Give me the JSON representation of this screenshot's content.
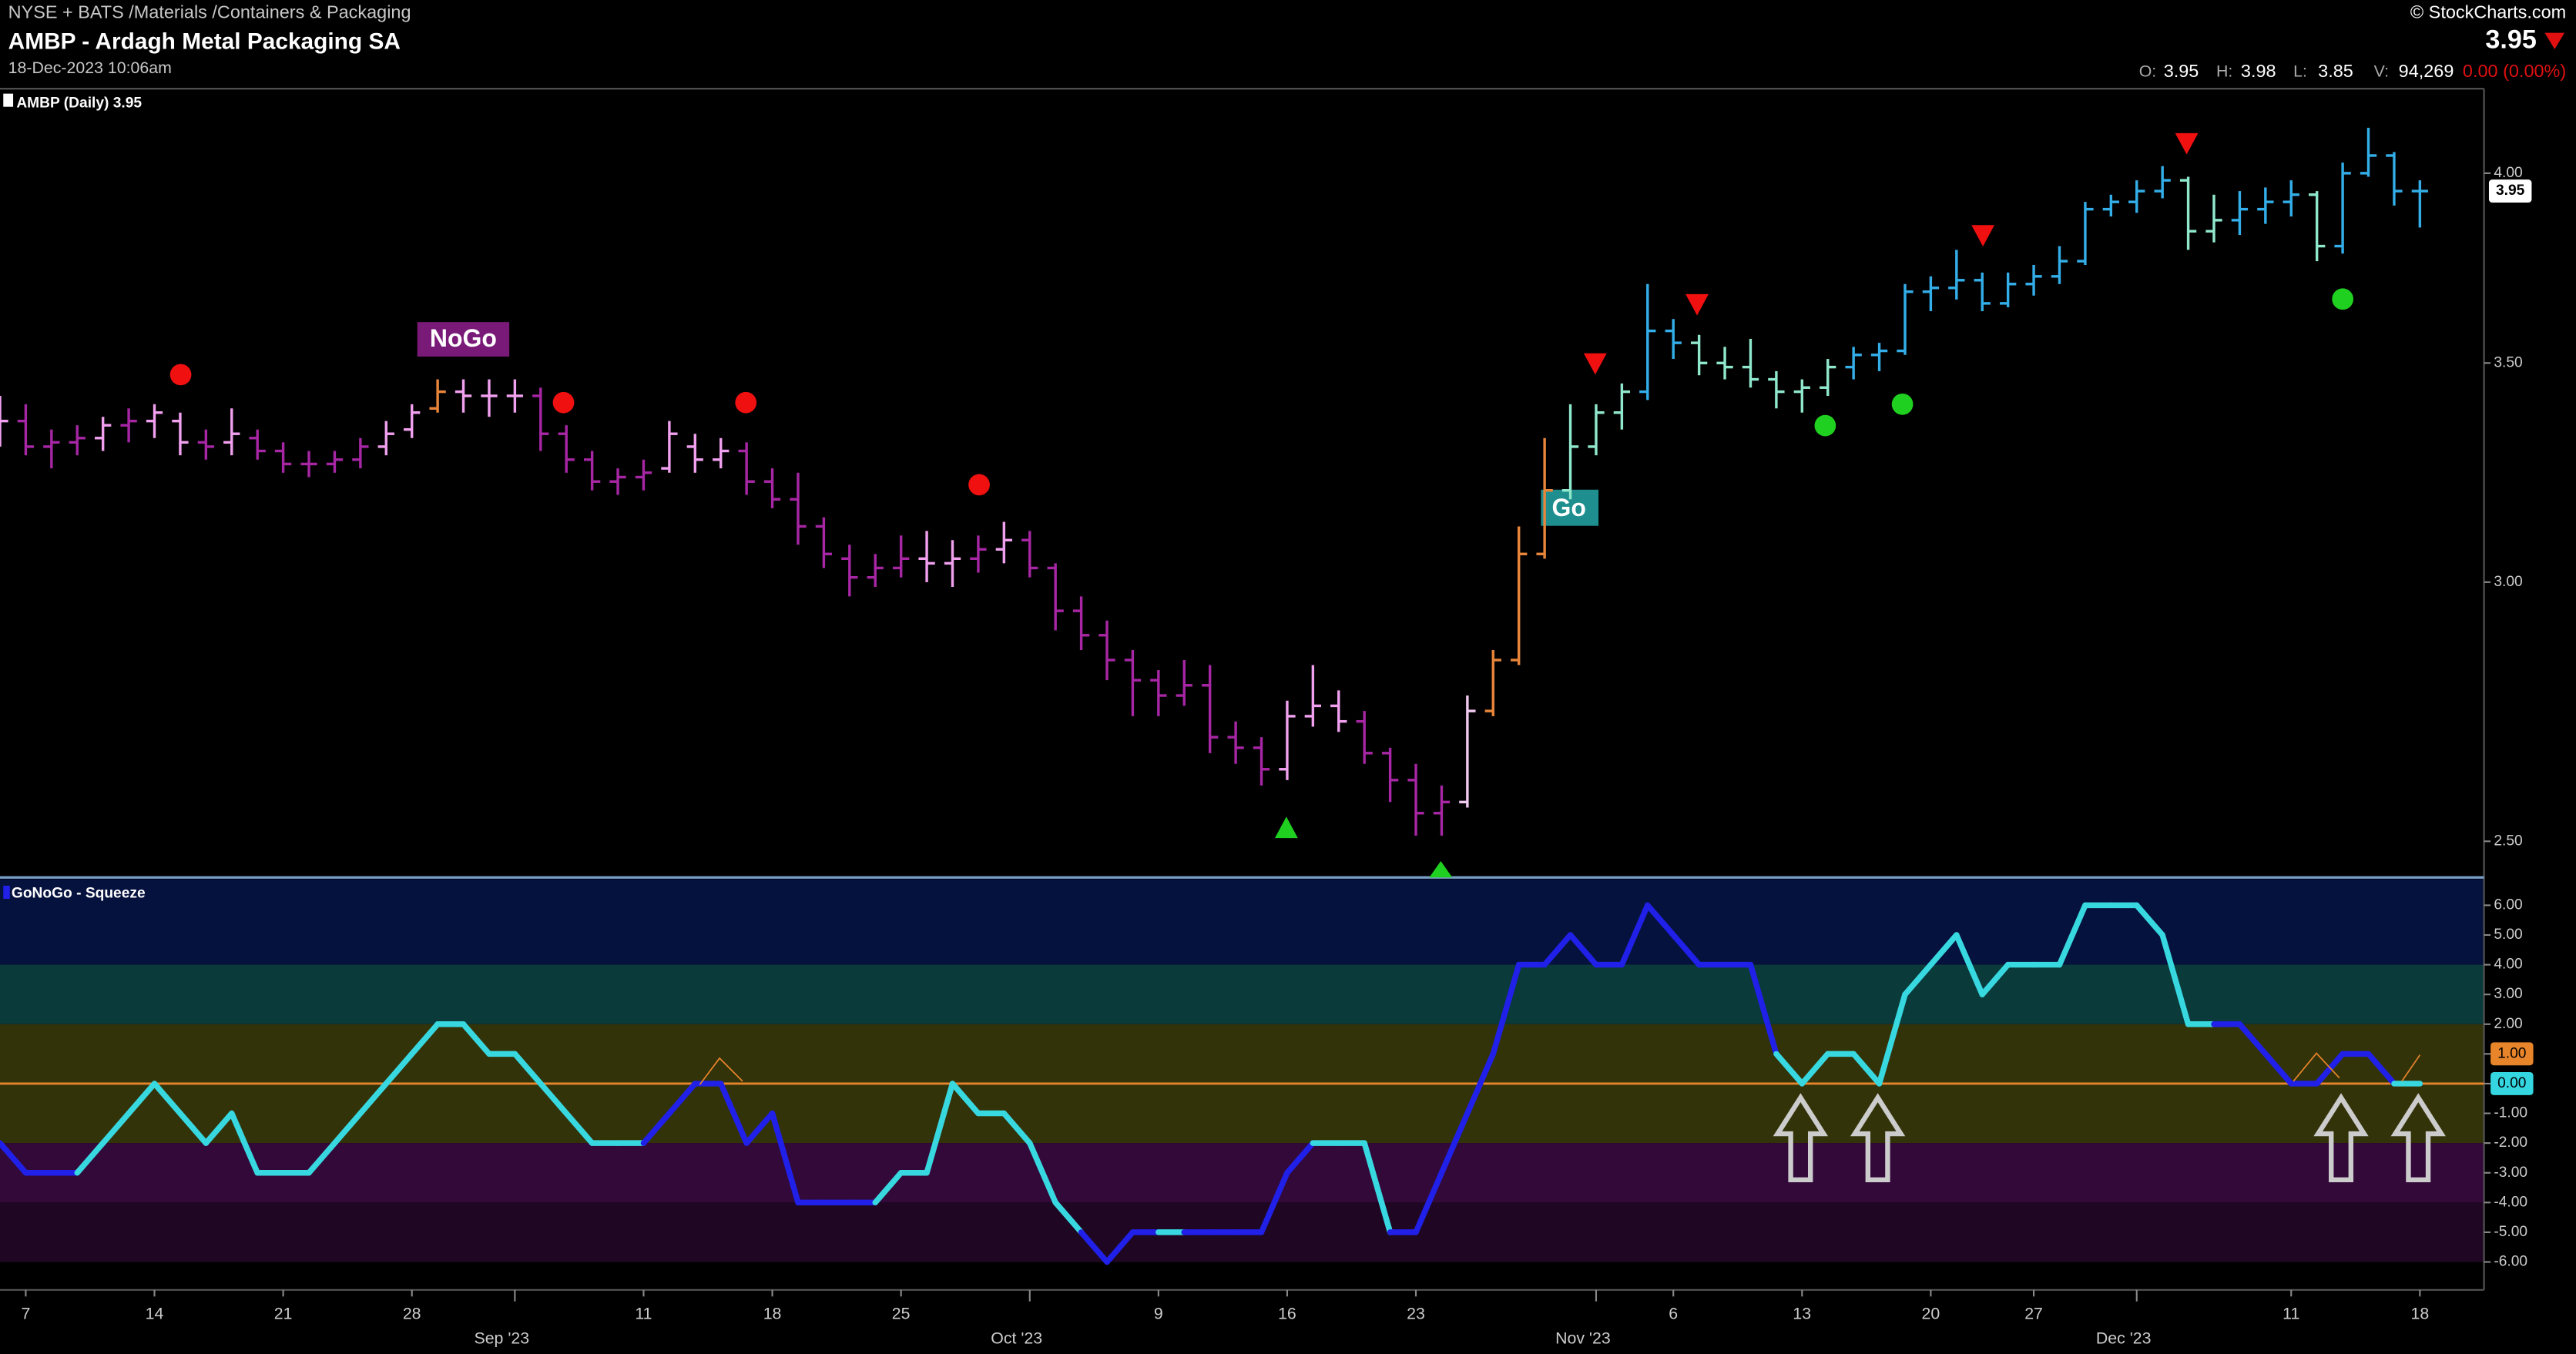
{
  "header": {
    "exchange": "NYSE + BATS /Materials /Containers & Packaging",
    "name": "AMBP - Ardagh Metal Packaging SA",
    "date": "18-Dec-2023 10:06am",
    "brand": "© StockCharts.com",
    "last": "3.95",
    "quote": [
      {
        "label": "O:",
        "value": "3.95"
      },
      {
        "label": "H:",
        "value": "3.98"
      },
      {
        "label": "L:",
        "value": "3.85"
      },
      {
        "label": "V:",
        "value": "94,269"
      }
    ],
    "change": "0.00 (0.00%)"
  },
  "chart_data": [
    {
      "type": "ohlc",
      "title": "AMBP (Daily) 3.95",
      "log": true,
      "ylim": [
        2.44,
        4.24
      ],
      "yticks": [
        {
          "value": 2.5,
          "label": "2.50"
        },
        {
          "value": 3,
          "label": "3.00"
        },
        {
          "value": 3.5,
          "label": "3.50"
        },
        {
          "value": 4,
          "label": "4.00"
        }
      ],
      "last_label": "3.95",
      "last_color": "#ffffff",
      "signal_labels": [
        {
          "text": "NoGo",
          "color": "#7a1a78"
        },
        {
          "text": "Go",
          "color": "#1f8e8e"
        }
      ],
      "categories": [
        "2023-08-04",
        "2023-08-07",
        "2023-08-08",
        "2023-08-09",
        "2023-08-10",
        "2023-08-11",
        "2023-08-14",
        "2023-08-15",
        "2023-08-16",
        "2023-08-17",
        "2023-08-18",
        "2023-08-21",
        "2023-08-22",
        "2023-08-23",
        "2023-08-24",
        "2023-08-25",
        "2023-08-28",
        "2023-08-29",
        "2023-08-30",
        "2023-08-31",
        "2023-09-01",
        "2023-09-05",
        "2023-09-06",
        "2023-09-07",
        "2023-09-08",
        "2023-09-11",
        "2023-09-12",
        "2023-09-13",
        "2023-09-14",
        "2023-09-15",
        "2023-09-18",
        "2023-09-19",
        "2023-09-20",
        "2023-09-21",
        "2023-09-22",
        "2023-09-25",
        "2023-09-26",
        "2023-09-27",
        "2023-09-28",
        "2023-09-29",
        "2023-10-02",
        "2023-10-03",
        "2023-10-04",
        "2023-10-05",
        "2023-10-06",
        "2023-10-09",
        "2023-10-10",
        "2023-10-11",
        "2023-10-12",
        "2023-10-13",
        "2023-10-16",
        "2023-10-17",
        "2023-10-18",
        "2023-10-19",
        "2023-10-20",
        "2023-10-23",
        "2023-10-24",
        "2023-10-25",
        "2023-10-26",
        "2023-10-27",
        "2023-10-30",
        "2023-10-31",
        "2023-11-01",
        "2023-11-02",
        "2023-11-03",
        "2023-11-06",
        "2023-11-07",
        "2023-11-08",
        "2023-11-09",
        "2023-11-10",
        "2023-11-13",
        "2023-11-14",
        "2023-11-15",
        "2023-11-16",
        "2023-11-17",
        "2023-11-20",
        "2023-11-21",
        "2023-11-22",
        "2023-11-24",
        "2023-11-27",
        "2023-11-28",
        "2023-11-29",
        "2023-11-30",
        "2023-12-01",
        "2023-12-04",
        "2023-12-05",
        "2023-12-06",
        "2023-12-07",
        "2023-12-08",
        "2023-12-11",
        "2023-12-12",
        "2023-12-13",
        "2023-12-14",
        "2023-12-15",
        "2023-12-18"
      ],
      "open": [
        3.37,
        3.36,
        3.3,
        3.31,
        3.32,
        3.35,
        3.36,
        3.36,
        3.31,
        3.31,
        3.32,
        3.29,
        3.26,
        3.26,
        3.27,
        3.3,
        3.34,
        3.39,
        3.43,
        3.42,
        3.42,
        3.42,
        3.33,
        3.27,
        3.22,
        3.23,
        3.25,
        3.3,
        3.27,
        3.29,
        3.22,
        3.18,
        3.12,
        3.05,
        3.01,
        3.03,
        3.05,
        3.04,
        3.05,
        3.07,
        3.09,
        3.03,
        2.94,
        2.89,
        2.84,
        2.8,
        2.77,
        2.79,
        2.69,
        2.67,
        2.63,
        2.73,
        2.75,
        2.72,
        2.66,
        2.61,
        2.55,
        2.57,
        2.74,
        2.84,
        3.06,
        3.2,
        3.3,
        3.38,
        3.43,
        3.58,
        3.55,
        3.5,
        3.49,
        3.46,
        3.43,
        3.44,
        3.49,
        3.52,
        3.53,
        3.68,
        3.69,
        3.71,
        3.65,
        3.7,
        3.72,
        3.76,
        3.9,
        3.92,
        3.95,
        3.98,
        3.84,
        3.87,
        3.9,
        3.92,
        3.94,
        3.8,
        4.0,
        4.05,
        3.95
      ],
      "high": [
        3.42,
        3.4,
        3.34,
        3.35,
        3.37,
        3.39,
        3.4,
        3.38,
        3.34,
        3.39,
        3.34,
        3.31,
        3.29,
        3.29,
        3.32,
        3.36,
        3.4,
        3.46,
        3.46,
        3.46,
        3.46,
        3.44,
        3.35,
        3.29,
        3.25,
        3.27,
        3.36,
        3.33,
        3.32,
        3.31,
        3.25,
        3.24,
        3.14,
        3.08,
        3.06,
        3.1,
        3.11,
        3.09,
        3.1,
        3.13,
        3.11,
        3.04,
        2.97,
        2.92,
        2.86,
        2.82,
        2.84,
        2.83,
        2.72,
        2.69,
        2.76,
        2.83,
        2.78,
        2.74,
        2.67,
        2.64,
        2.6,
        2.77,
        2.86,
        3.12,
        3.32,
        3.4,
        3.4,
        3.45,
        3.7,
        3.61,
        3.57,
        3.54,
        3.56,
        3.48,
        3.46,
        3.51,
        3.54,
        3.55,
        3.7,
        3.72,
        3.79,
        3.73,
        3.73,
        3.75,
        3.8,
        3.92,
        3.94,
        3.98,
        4.02,
        3.99,
        3.94,
        3.95,
        3.96,
        3.98,
        3.95,
        4.03,
        4.13,
        4.06,
        3.98
      ],
      "low": [
        3.3,
        3.28,
        3.25,
        3.28,
        3.29,
        3.31,
        3.32,
        3.28,
        3.27,
        3.28,
        3.27,
        3.24,
        3.23,
        3.24,
        3.25,
        3.28,
        3.32,
        3.38,
        3.38,
        3.37,
        3.38,
        3.29,
        3.24,
        3.2,
        3.19,
        3.2,
        3.24,
        3.24,
        3.25,
        3.19,
        3.16,
        3.08,
        3.03,
        2.97,
        2.99,
        3.01,
        3.0,
        2.99,
        3.02,
        3.04,
        3.01,
        2.9,
        2.86,
        2.8,
        2.73,
        2.73,
        2.75,
        2.66,
        2.64,
        2.6,
        2.61,
        2.71,
        2.7,
        2.64,
        2.57,
        2.51,
        2.51,
        2.56,
        2.73,
        2.83,
        3.05,
        3.18,
        3.28,
        3.34,
        3.41,
        3.51,
        3.47,
        3.46,
        3.44,
        3.39,
        3.38,
        3.42,
        3.46,
        3.48,
        3.52,
        3.63,
        3.66,
        3.63,
        3.64,
        3.67,
        3.7,
        3.75,
        3.88,
        3.89,
        3.93,
        3.79,
        3.81,
        3.83,
        3.86,
        3.88,
        3.76,
        3.78,
        3.99,
        3.91,
        3.85
      ],
      "close": [
        3.36,
        3.3,
        3.31,
        3.32,
        3.35,
        3.36,
        3.38,
        3.31,
        3.3,
        3.33,
        3.29,
        3.26,
        3.26,
        3.27,
        3.3,
        3.33,
        3.38,
        3.43,
        3.42,
        3.42,
        3.42,
        3.33,
        3.27,
        3.22,
        3.23,
        3.24,
        3.33,
        3.27,
        3.29,
        3.22,
        3.18,
        3.12,
        3.06,
        3.01,
        3.03,
        3.05,
        3.04,
        3.05,
        3.07,
        3.09,
        3.03,
        2.94,
        2.89,
        2.84,
        2.8,
        2.77,
        2.79,
        2.69,
        2.67,
        2.63,
        2.73,
        2.75,
        2.72,
        2.66,
        2.61,
        2.55,
        2.57,
        2.74,
        2.84,
        3.06,
        3.2,
        3.3,
        3.38,
        3.43,
        3.58,
        3.55,
        3.5,
        3.49,
        3.46,
        3.43,
        3.44,
        3.49,
        3.52,
        3.53,
        3.68,
        3.69,
        3.71,
        3.65,
        3.7,
        3.72,
        3.76,
        3.9,
        3.92,
        3.95,
        3.98,
        3.84,
        3.87,
        3.9,
        3.92,
        3.94,
        3.8,
        4.0,
        4.05,
        3.95,
        3.95
      ],
      "colors": [
        "#f0a0ee",
        "#a626a4",
        "#a626a4",
        "#a626a4",
        "#f0a0ee",
        "#a626a4",
        "#f0a0ee",
        "#f0a0ee",
        "#a626a4",
        "#f0a0ee",
        "#a626a4",
        "#a626a4",
        "#a626a4",
        "#a626a4",
        "#a626a4",
        "#f0a0ee",
        "#f0a0ee",
        "#e8853a",
        "#f0a0ee",
        "#f0a0ee",
        "#f0a0ee",
        "#a626a4",
        "#a626a4",
        "#a626a4",
        "#a626a4",
        "#a626a4",
        "#f0a0ee",
        "#f0a0ee",
        "#f0a0ee",
        "#a626a4",
        "#a626a4",
        "#a626a4",
        "#a626a4",
        "#a626a4",
        "#a626a4",
        "#a626a4",
        "#f0a0ee",
        "#f0a0ee",
        "#a626a4",
        "#f0a0ee",
        "#a626a4",
        "#a626a4",
        "#a626a4",
        "#a626a4",
        "#a626a4",
        "#a626a4",
        "#a626a4",
        "#a626a4",
        "#a626a4",
        "#a626a4",
        "#f0a0ee",
        "#f0a0ee",
        "#f0a0ee",
        "#a626a4",
        "#a626a4",
        "#a626a4",
        "#a626a4",
        "#f0c8f0",
        "#e8853a",
        "#e8853a",
        "#e8853a",
        "#8fe8cc",
        "#8fe8cc",
        "#8fe8cc",
        "#33aee8",
        "#33aee8",
        "#8fe8cc",
        "#8fe8cc",
        "#8fe8cc",
        "#8fe8cc",
        "#8fe8cc",
        "#8fe8cc",
        "#33aee8",
        "#33aee8",
        "#33aee8",
        "#33aee8",
        "#33aee8",
        "#33aee8",
        "#33aee8",
        "#33aee8",
        "#33aee8",
        "#33aee8",
        "#33aee8",
        "#33aee8",
        "#33aee8",
        "#8fe8cc",
        "#8fe8cc",
        "#33aee8",
        "#33aee8",
        "#33aee8",
        "#8fe8cc",
        "#33aee8",
        "#33aee8",
        "#33aee8",
        "#33aee8"
      ],
      "xticks": [
        {
          "value": "2023-08-07",
          "label": "7"
        },
        {
          "value": "2023-08-14",
          "label": "14"
        },
        {
          "value": "2023-08-21",
          "label": "21"
        },
        {
          "value": "2023-08-28",
          "label": "28"
        },
        {
          "value": "2023-09-11",
          "label": "11"
        },
        {
          "value": "2023-09-18",
          "label": "18"
        },
        {
          "value": "2023-09-25",
          "label": "25"
        },
        {
          "value": "2023-10-09",
          "label": "9"
        },
        {
          "value": "2023-10-16",
          "label": "16"
        },
        {
          "value": "2023-10-23",
          "label": "23"
        },
        {
          "value": "2023-11-06",
          "label": "6"
        },
        {
          "value": "2023-11-13",
          "label": "13"
        },
        {
          "value": "2023-11-20",
          "label": "20"
        },
        {
          "value": "2023-11-27",
          "label": "27"
        },
        {
          "value": "2023-12-11",
          "label": "11"
        },
        {
          "value": "2023-12-18",
          "label": "18"
        }
      ],
      "xmonths": [
        {
          "value": "2023-09-01",
          "label": "Sep '23"
        },
        {
          "value": "2023-10-02",
          "label": "Oct '23"
        },
        {
          "value": "2023-11-01",
          "label": "Nov '23"
        },
        {
          "value": "2023-12-01",
          "label": "Dec '23"
        }
      ]
    },
    {
      "type": "line",
      "title": "GoNoGo - Squeeze",
      "ylim": [
        -6.94,
        6.88
      ],
      "yticks": [
        {
          "value": 6,
          "label": "6.00"
        },
        {
          "value": 5,
          "label": "5.00"
        },
        {
          "value": 4,
          "label": "4.00"
        },
        {
          "value": 3,
          "label": "3.00"
        },
        {
          "value": 2,
          "label": "2.00"
        },
        {
          "value": 1,
          "label": "1.00"
        },
        {
          "value": 0,
          "label": "0.00"
        },
        {
          "value": -1,
          "label": "-1.00"
        },
        {
          "value": -2,
          "label": "-2.00"
        },
        {
          "value": -3,
          "label": "-3.00"
        },
        {
          "value": -4,
          "label": "-4.00"
        },
        {
          "value": -5,
          "label": "-5.00"
        },
        {
          "value": -6,
          "label": "-6.00"
        }
      ],
      "hline": {
        "value": 0,
        "color": "#e8852a"
      },
      "marker_labels": [
        {
          "value": 1,
          "label": "1.00",
          "color": "#e8852a"
        },
        {
          "value": 0,
          "label": "0.00",
          "color": "#34d6e0"
        }
      ],
      "values": [
        -2,
        -3,
        -3,
        -3,
        -2,
        -1,
        0,
        -1,
        -2,
        -1,
        -3,
        -3,
        -3,
        -2,
        -1,
        0,
        1,
        2,
        2,
        1,
        1,
        0,
        -1,
        -2,
        -2,
        -2,
        -1,
        0,
        0,
        -2,
        -1,
        -4,
        -4,
        -4,
        -4,
        -3,
        -3,
        0,
        -1,
        -1,
        -2,
        -4,
        -5,
        -6,
        -5,
        -5,
        -5,
        -5,
        -5,
        -5,
        -3,
        -2,
        -2,
        -2,
        -5,
        -5,
        -3,
        -1,
        1,
        4,
        4,
        5,
        4,
        4,
        6,
        5,
        4,
        4,
        4,
        1,
        0,
        1,
        1,
        0,
        3,
        4,
        5,
        3,
        4,
        4,
        4,
        6,
        6,
        6,
        5,
        2,
        2,
        2,
        1,
        0,
        0,
        1,
        1,
        0,
        0
      ],
      "colors": [
        "#2020e8",
        "#2020e8",
        "#2020e8",
        "#2020e8",
        "#38d8e0",
        "#38d8e0",
        "#38d8e0",
        "#38d8e0",
        "#38d8e0",
        "#38d8e0",
        "#38d8e0",
        "#38d8e0",
        "#38d8e0",
        "#38d8e0",
        "#38d8e0",
        "#38d8e0",
        "#38d8e0",
        "#38d8e0",
        "#38d8e0",
        "#38d8e0",
        "#38d8e0",
        "#38d8e0",
        "#38d8e0",
        "#38d8e0",
        "#38d8e0",
        "#38d8e0",
        "#2020e8",
        "#2020e8",
        "#2020e8",
        "#2020e8",
        "#2020e8",
        "#2020e8",
        "#2020e8",
        "#2020e8",
        "#2020e8",
        "#38d8e0",
        "#38d8e0",
        "#38d8e0",
        "#38d8e0",
        "#38d8e0",
        "#38d8e0",
        "#38d8e0",
        "#38d8e0",
        "#2020e8",
        "#2020e8",
        "#2020e8",
        "#38d8e0",
        "#2020e8",
        "#2020e8",
        "#2020e8",
        "#2020e8",
        "#2020e8",
        "#38d8e0",
        "#38d8e0",
        "#38d8e0",
        "#2020e8",
        "#2020e8",
        "#2020e8",
        "#2020e8",
        "#2020e8",
        "#2020e8",
        "#2020e8",
        "#2020e8",
        "#2020e8",
        "#2020e8",
        "#2020e8",
        "#2020e8",
        "#2020e8",
        "#2020e8",
        "#2020e8",
        "#38d8e0",
        "#38d8e0",
        "#38d8e0",
        "#38d8e0",
        "#38d8e0",
        "#38d8e0",
        "#38d8e0",
        "#38d8e0",
        "#38d8e0",
        "#38d8e0",
        "#38d8e0",
        "#38d8e0",
        "#38d8e0",
        "#38d8e0",
        "#38d8e0",
        "#38d8e0",
        "#38d8e0",
        "#2020e8",
        "#2020e8",
        "#2020e8",
        "#2020e8",
        "#2020e8",
        "#2020e8",
        "#2020e8",
        "#38d8e0"
      ]
    }
  ]
}
